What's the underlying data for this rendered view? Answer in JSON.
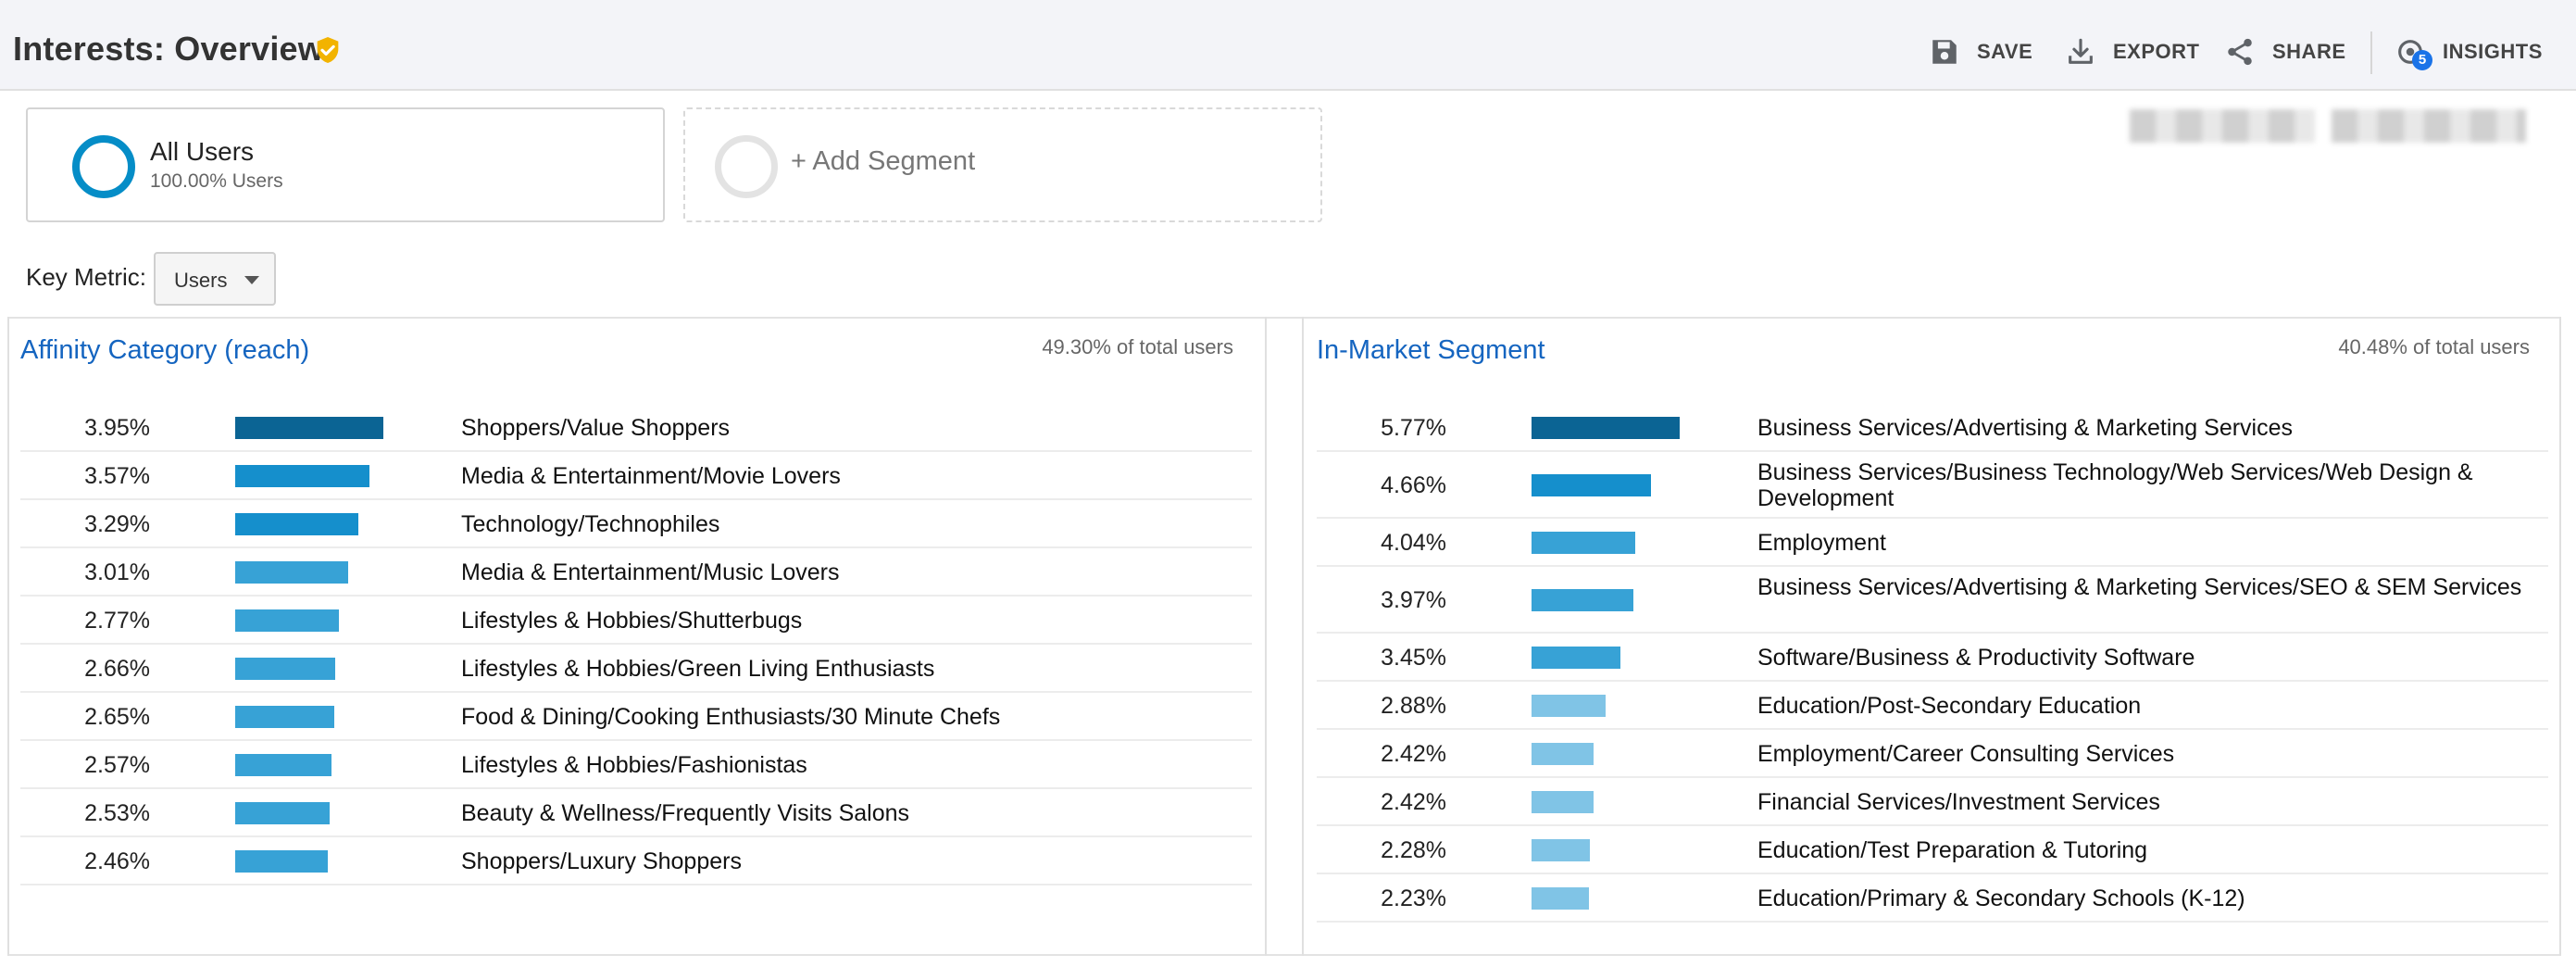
{
  "header": {
    "title": "Interests: Overview",
    "save_label": "SAVE",
    "export_label": "EXPORT",
    "share_label": "SHARE",
    "insights_label": "INSIGHTS",
    "insights_badge": "5"
  },
  "segments": {
    "all_users_name": "All Users",
    "all_users_sub": "100.00% Users",
    "add_segment_label": "+ Add Segment"
  },
  "key_metric": {
    "label": "Key Metric:",
    "value": "Users"
  },
  "affinity": {
    "title": "Affinity Category (reach)",
    "total_pct": "49.30% of total users",
    "rows": [
      {
        "pct": "3.95%",
        "value": 3.95,
        "label": "Shoppers/Value Shoppers"
      },
      {
        "pct": "3.57%",
        "value": 3.57,
        "label": "Media & Entertainment/Movie Lovers"
      },
      {
        "pct": "3.29%",
        "value": 3.29,
        "label": "Technology/Technophiles"
      },
      {
        "pct": "3.01%",
        "value": 3.01,
        "label": "Media & Entertainment/Music Lovers"
      },
      {
        "pct": "2.77%",
        "value": 2.77,
        "label": "Lifestyles & Hobbies/Shutterbugs"
      },
      {
        "pct": "2.66%",
        "value": 2.66,
        "label": "Lifestyles & Hobbies/Green Living Enthusiasts"
      },
      {
        "pct": "2.65%",
        "value": 2.65,
        "label": "Food & Dining/Cooking Enthusiasts/30 Minute Chefs"
      },
      {
        "pct": "2.57%",
        "value": 2.57,
        "label": "Lifestyles & Hobbies/Fashionistas"
      },
      {
        "pct": "2.53%",
        "value": 2.53,
        "label": "Beauty & Wellness/Frequently Visits Salons"
      },
      {
        "pct": "2.46%",
        "value": 2.46,
        "label": "Shoppers/Luxury Shoppers"
      }
    ]
  },
  "inmarket": {
    "title": "In-Market Segment",
    "total_pct": "40.48% of total users",
    "rows": [
      {
        "pct": "5.77%",
        "value": 5.77,
        "label": "Business Services/Advertising & Marketing Services"
      },
      {
        "pct": "4.66%",
        "value": 4.66,
        "label": "Business Services/Business Technology/Web Services/Web Design & Development"
      },
      {
        "pct": "4.04%",
        "value": 4.04,
        "label": "Employment"
      },
      {
        "pct": "3.97%",
        "value": 3.97,
        "label": "Business Services/Advertising & Marketing Services/SEO & SEM Services"
      },
      {
        "pct": "3.45%",
        "value": 3.45,
        "label": "Software/Business & Productivity Software"
      },
      {
        "pct": "2.88%",
        "value": 2.88,
        "label": "Education/Post-Secondary Education"
      },
      {
        "pct": "2.42%",
        "value": 2.42,
        "label": "Employment/Career Consulting Services"
      },
      {
        "pct": "2.42%",
        "value": 2.42,
        "label": "Financial Services/Investment Services"
      },
      {
        "pct": "2.28%",
        "value": 2.28,
        "label": "Education/Test Preparation & Tutoring"
      },
      {
        "pct": "2.23%",
        "value": 2.23,
        "label": "Education/Primary & Secondary Schools (K-12)"
      }
    ]
  },
  "colors": {
    "bar_dark": "#0b6494",
    "bar_mid": "#158fcc",
    "bar_light": "#37a2d6",
    "bar_pale": "#80c4e6",
    "link": "#1565c0",
    "segment_ring": "#058dc7",
    "verified": "#f2b300"
  }
}
